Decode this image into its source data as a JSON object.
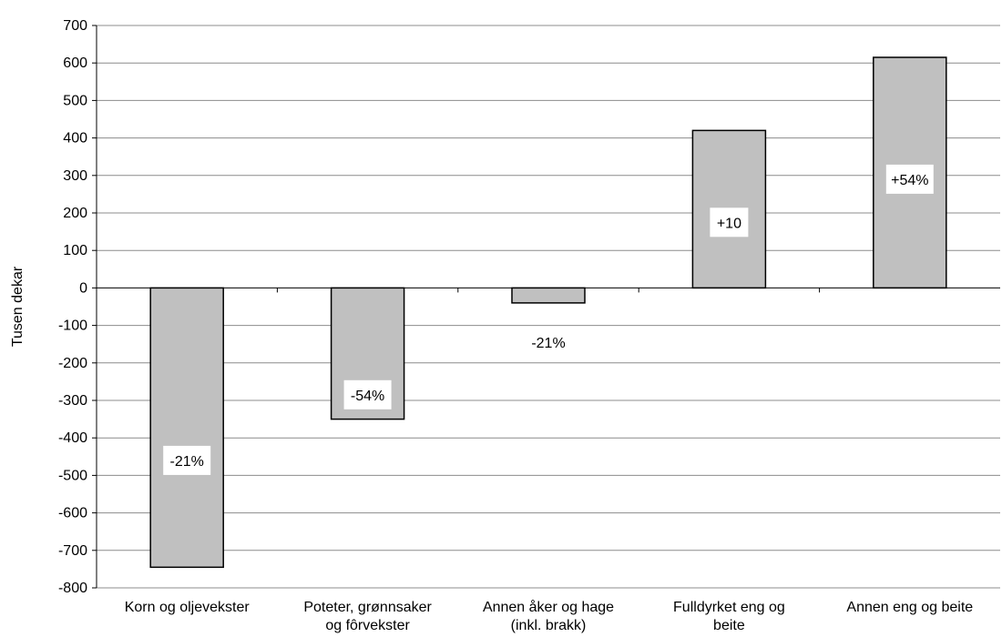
{
  "chart_data": {
    "type": "bar",
    "title": "",
    "xlabel": "",
    "ylabel": "Tusen dekar",
    "ylim": [
      -800,
      700
    ],
    "ytick_step": 100,
    "grid": true,
    "legend": "none",
    "bar_color": "#c0c0c0",
    "categories": [
      [
        "Korn og oljevekster"
      ],
      [
        "Poteter, grønnsaker",
        "og fôrvekster"
      ],
      [
        "Annen åker og hage",
        "(inkl. brakk)"
      ],
      [
        "Fulldyrket eng og",
        "beite"
      ],
      [
        "Annen eng og beite"
      ]
    ],
    "values": [
      -745,
      -350,
      -40,
      420,
      615
    ],
    "data_labels": [
      "-21%",
      "-54%",
      "-21%",
      "+10",
      "+54%"
    ],
    "data_label_positions": [
      -460,
      -285,
      -145,
      175,
      290
    ]
  }
}
